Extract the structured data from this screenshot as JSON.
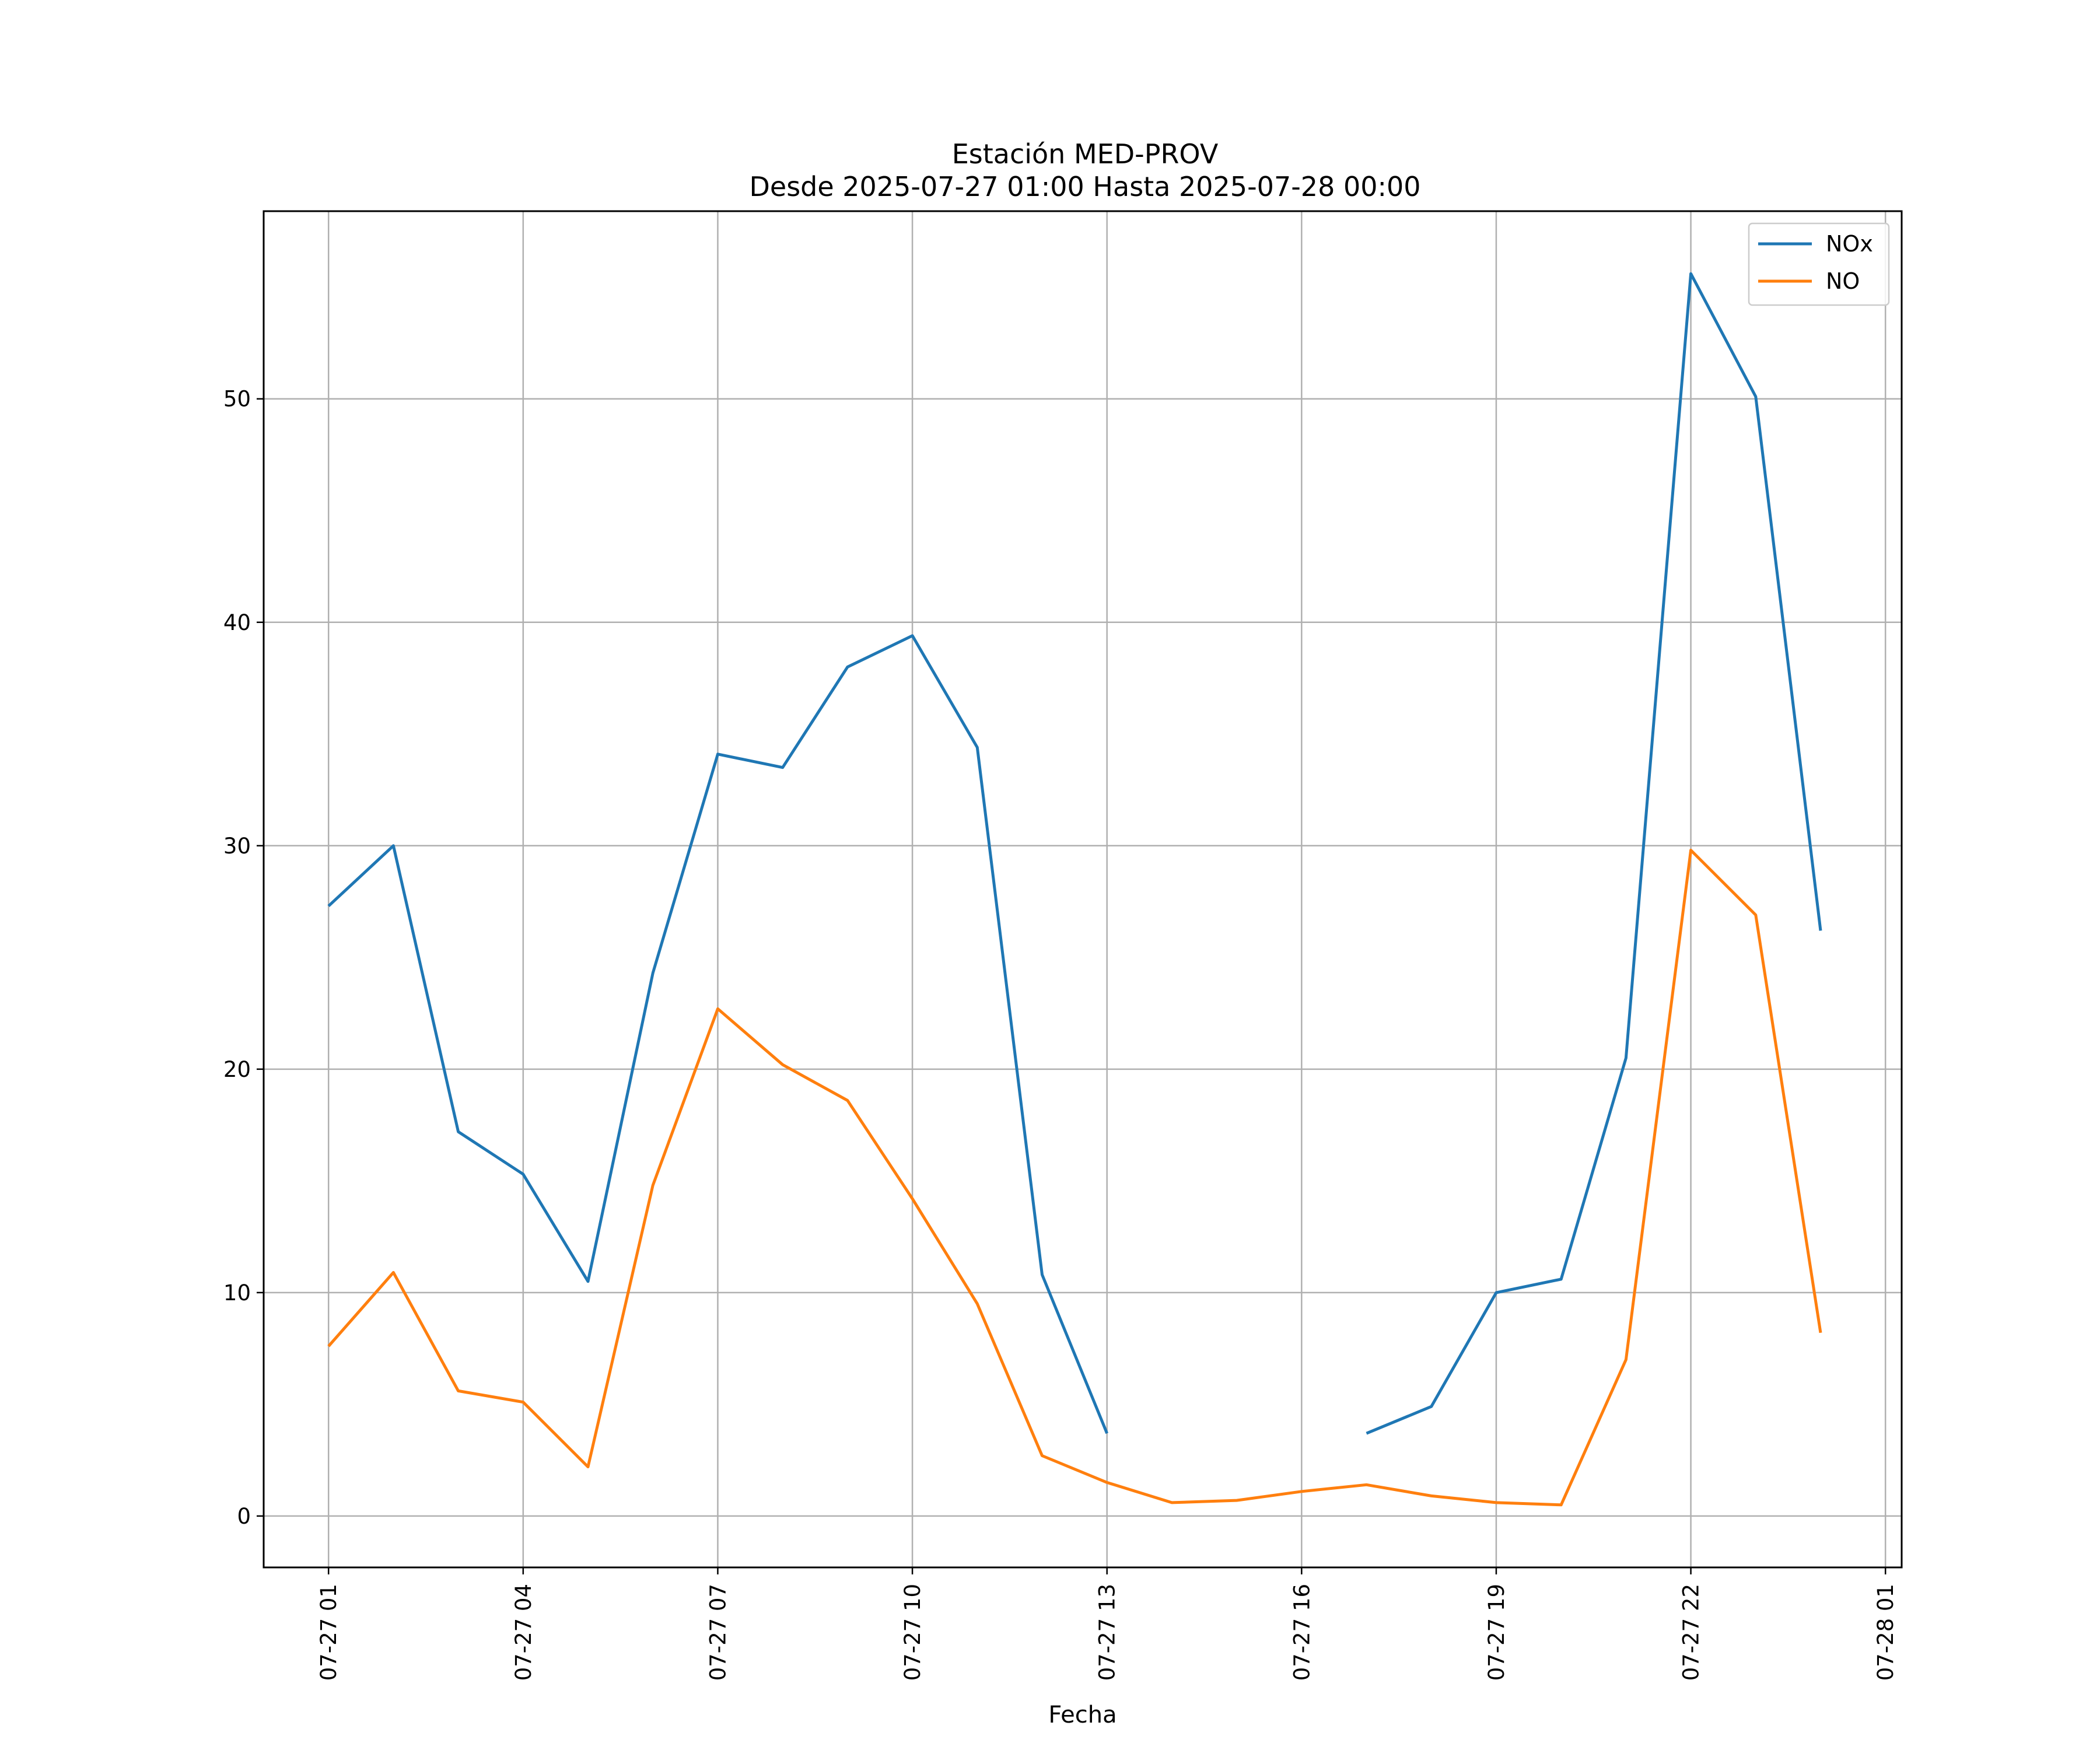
{
  "chart_data": {
    "type": "line",
    "title": "Estación MED-PROV",
    "subtitle": "Desde 2025-07-27 01:00 Hasta 2025-07-28 00:00",
    "xlabel": "Fecha",
    "ylabel": "",
    "x": [
      "07-27 01:00",
      "07-27 02:00",
      "07-27 03:00",
      "07-27 04:00",
      "07-27 05:00",
      "07-27 06:00",
      "07-27 07:00",
      "07-27 08:00",
      "07-27 09:00",
      "07-27 10:00",
      "07-27 11:00",
      "07-27 12:00",
      "07-27 13:00",
      "07-27 14:00",
      "07-27 15:00",
      "07-27 16:00",
      "07-27 17:00",
      "07-27 18:00",
      "07-27 19:00",
      "07-27 20:00",
      "07-27 21:00",
      "07-27 22:00",
      "07-27 23:00",
      "07-28 00:00"
    ],
    "xticks": [
      "07-27 01",
      "07-27 04",
      "07-27 07",
      "07-27 10",
      "07-27 13",
      "07-27 16",
      "07-27 19",
      "07-27 22",
      "07-28 01"
    ],
    "xlim": [
      "07-27 00:00",
      "07-28 01:15"
    ],
    "ylim": [
      -2.3,
      58.4
    ],
    "yticks": [
      0,
      10,
      20,
      30,
      40,
      50
    ],
    "grid": true,
    "legend_position": "top-right",
    "series": [
      {
        "name": "NOx",
        "color": "#1f77b4",
        "values": [
          27.3,
          30.0,
          17.2,
          15.3,
          10.5,
          24.3,
          34.1,
          33.5,
          38.0,
          39.4,
          34.4,
          10.8,
          3.7,
          null,
          null,
          null,
          3.7,
          4.9,
          10.0,
          10.6,
          20.5,
          55.6,
          50.1,
          26.2
        ]
      },
      {
        "name": "NO",
        "color": "#ff7f0e",
        "values": [
          7.6,
          10.9,
          5.6,
          5.1,
          2.2,
          14.8,
          22.7,
          20.2,
          18.6,
          14.2,
          9.5,
          2.7,
          1.5,
          0.6,
          0.7,
          1.1,
          1.4,
          0.9,
          0.6,
          0.5,
          7.0,
          29.8,
          26.9,
          8.2
        ]
      }
    ]
  }
}
